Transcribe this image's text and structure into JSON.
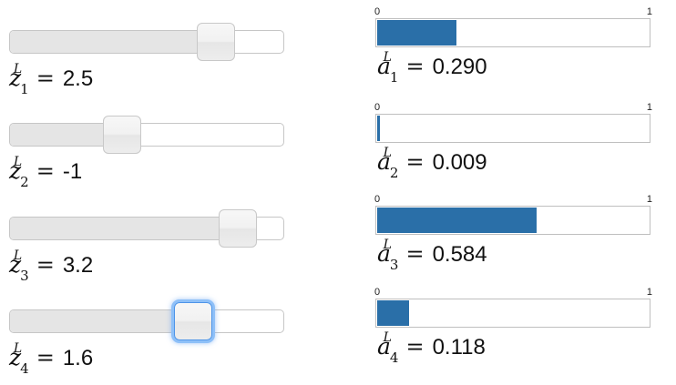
{
  "theme": {
    "bar_color": "#2a6fa8",
    "slider_fill_color": "#e5e5e5",
    "focus_color": "#4d94e8"
  },
  "sliders": [
    {
      "var": "z",
      "sup": "L",
      "sub": "1",
      "eq": "=",
      "value": "2.5",
      "level_fraction": 0.75,
      "focused": false
    },
    {
      "var": "z",
      "sup": "L",
      "sub": "2",
      "eq": "=",
      "value": "-1",
      "level_fraction": 0.41,
      "focused": false
    },
    {
      "var": "z",
      "sup": "L",
      "sub": "3",
      "eq": "=",
      "value": "3.2",
      "level_fraction": 0.83,
      "focused": false
    },
    {
      "var": "z",
      "sup": "L",
      "sub": "4",
      "eq": "=",
      "value": "1.6",
      "level_fraction": 0.67,
      "focused": true
    }
  ],
  "bars": [
    {
      "var": "a",
      "sup": "L",
      "sub": "1",
      "eq": "=",
      "value": "0.290",
      "fraction": 0.29,
      "axis_min": "0",
      "axis_max": "1"
    },
    {
      "var": "a",
      "sup": "L",
      "sub": "2",
      "eq": "=",
      "value": "0.009",
      "fraction": 0.009,
      "axis_min": "0",
      "axis_max": "1"
    },
    {
      "var": "a",
      "sup": "L",
      "sub": "3",
      "eq": "=",
      "value": "0.584",
      "fraction": 0.584,
      "axis_min": "0",
      "axis_max": "1"
    },
    {
      "var": "a",
      "sup": "L",
      "sub": "4",
      "eq": "=",
      "value": "0.118",
      "fraction": 0.118,
      "axis_min": "0",
      "axis_max": "1"
    }
  ]
}
